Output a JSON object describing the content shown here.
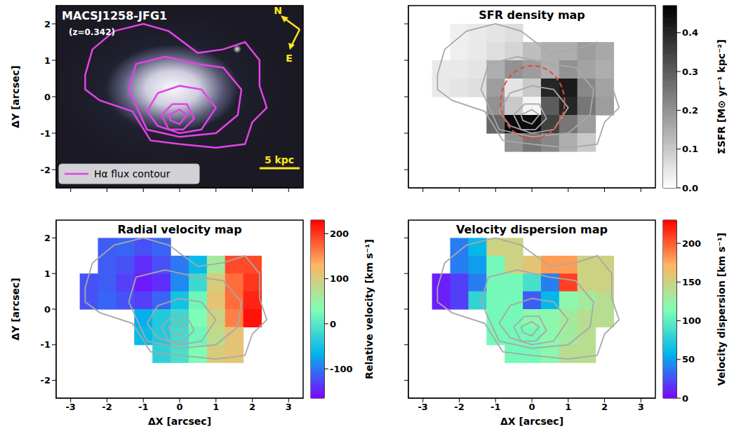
{
  "halpha_contours": {
    "name": "Hα flux contour",
    "levels": [
      {
        "x": [
          -2.6,
          -2.4,
          -1.8,
          -1.0,
          -0.3,
          0.5,
          1.2,
          1.8,
          2.2,
          2.2,
          2.4,
          2.0,
          1.8,
          1.0,
          0.0,
          -0.8,
          -1.3,
          -2.2,
          -2.6,
          -2.6
        ],
        "y": [
          0.6,
          1.3,
          1.8,
          2.0,
          1.8,
          1.2,
          1.3,
          1.5,
          1.0,
          0.3,
          -0.3,
          -0.7,
          -1.3,
          -1.4,
          -1.3,
          -1.2,
          -0.4,
          -0.1,
          0.2,
          0.6
        ]
      },
      {
        "x": [
          -1.4,
          -1.2,
          -0.4,
          0.5,
          1.2,
          1.7,
          1.6,
          1.0,
          0.0,
          -0.9,
          -1.4
        ],
        "y": [
          0.2,
          0.9,
          1.1,
          0.9,
          0.8,
          0.2,
          -0.5,
          -1.0,
          -1.1,
          -0.9,
          0.2
        ]
      },
      {
        "x": [
          -0.9,
          -0.6,
          0.0,
          0.6,
          1.0,
          0.6,
          0.0,
          -0.6,
          -0.9
        ],
        "y": [
          -0.4,
          0.1,
          0.3,
          0.2,
          -0.3,
          -0.9,
          -1.0,
          -0.8,
          -0.4
        ]
      },
      {
        "x": [
          -0.5,
          -0.2,
          0.2,
          0.4,
          0.1,
          -0.3,
          -0.5
        ],
        "y": [
          -0.5,
          -0.2,
          -0.2,
          -0.6,
          -0.9,
          -0.9,
          -0.5
        ]
      },
      {
        "x": [
          -0.3,
          0.0,
          0.2,
          0.0,
          -0.25,
          -0.3
        ],
        "y": [
          -0.5,
          -0.35,
          -0.5,
          -0.75,
          -0.65,
          -0.5
        ]
      }
    ]
  },
  "chart_data": [
    {
      "type": "image",
      "annotations": [
        "MACSJ1258-JFG1",
        "(z=0.342)"
      ],
      "compass": [
        "N",
        "E"
      ],
      "scale_bar": "5 kpc",
      "legend": "lower left",
      "contour_color": "#e442e8",
      "ylabel": "ΔY [arcsec]",
      "xlim": [
        -3.4,
        3.4
      ],
      "ylim": [
        -2.5,
        2.5
      ],
      "xticks": [
        -3,
        -2,
        -1,
        0,
        1,
        2,
        3
      ],
      "yticks": [
        -2,
        -1,
        0,
        1,
        2
      ],
      "tick_labels": "y"
    },
    {
      "type": "heatmap",
      "title": "SFR density map",
      "contour_color": "#a8a8a8",
      "xlim": [
        -3.4,
        3.4
      ],
      "ylim": [
        -2.5,
        2.5
      ],
      "xticks": [
        -3,
        -2,
        -1,
        0,
        1,
        2,
        3
      ],
      "yticks": [
        -2,
        -1,
        0,
        1,
        2
      ],
      "tick_labels": false,
      "x": [
        -2.5,
        -2.0,
        -1.5,
        -1.0,
        -0.5,
        0.0,
        0.5,
        1.0,
        1.5,
        2.0
      ],
      "y": [
        1.75,
        1.25,
        0.75,
        0.25,
        -0.25,
        -0.75,
        -1.25
      ],
      "cells": [
        [
          null,
          0.03,
          0.04,
          0.05,
          0.06,
          null,
          null,
          null,
          null,
          null
        ],
        [
          null,
          0.03,
          0.04,
          0.06,
          0.08,
          0.12,
          0.15,
          0.15,
          0.18,
          0.16
        ],
        [
          0.04,
          0.04,
          0.05,
          0.15,
          0.2,
          0.18,
          0.15,
          0.2,
          0.17,
          0.15
        ],
        [
          0.04,
          0.05,
          0.06,
          0.18,
          0.05,
          0.1,
          0.4,
          0.42,
          0.22,
          0.17
        ],
        [
          null,
          null,
          null,
          0.2,
          0.1,
          0.02,
          0.3,
          0.4,
          0.25,
          0.18
        ],
        [
          null,
          null,
          null,
          0.28,
          0.45,
          0.45,
          0.35,
          0.25,
          0.18,
          null
        ],
        [
          null,
          null,
          null,
          null,
          0.2,
          0.25,
          0.22,
          0.15,
          0.1,
          null
        ]
      ],
      "ellipse": {
        "center": [
          0.02,
          -0.15
        ],
        "semi_axes": [
          0.88,
          1.0
        ],
        "color": "#e8463c",
        "line_style": "dashed"
      },
      "colorbar": {
        "label": "ΣSFR [M⊙ yr⁻¹ kpc⁻²]",
        "range": [
          0,
          0.47
        ],
        "ticks": [
          {
            "value": 0,
            "label": "0.0"
          },
          0.1,
          0.2,
          0.3,
          0.4
        ],
        "colors": [
          "#ffffff",
          "#000000"
        ]
      }
    },
    {
      "type": "heatmap",
      "title": "Radial velocity map",
      "contour_color": "#a8a8a8",
      "xlabel": "ΔX [arcsec]",
      "ylabel": "ΔY [arcsec]",
      "xlim": [
        -3.4,
        3.4
      ],
      "ylim": [
        -2.5,
        2.5
      ],
      "xticks": [
        -3,
        -2,
        -1,
        0,
        1,
        2,
        3
      ],
      "yticks": [
        -2,
        -1,
        0,
        1,
        2
      ],
      "tick_labels": true,
      "x": [
        -2.5,
        -2.0,
        -1.5,
        -1.0,
        -0.5,
        0.0,
        0.5,
        1.0,
        1.5,
        2.0
      ],
      "y": [
        1.75,
        1.25,
        0.75,
        0.25,
        -0.25,
        -0.75,
        -1.25
      ],
      "cells": [
        [
          null,
          -115,
          -110,
          -120,
          -110,
          null,
          null,
          null,
          null,
          null
        ],
        [
          null,
          -115,
          -120,
          -140,
          -120,
          -100,
          -60,
          60,
          190,
          190
        ],
        [
          -120,
          -115,
          -130,
          -150,
          -140,
          -90,
          -20,
          100,
          170,
          200
        ],
        [
          -120,
          -110,
          -120,
          -130,
          -110,
          -50,
          20,
          110,
          170,
          210
        ],
        [
          null,
          null,
          null,
          -70,
          -40,
          -20,
          30,
          90,
          160,
          220
        ],
        [
          null,
          null,
          null,
          -60,
          -40,
          -15,
          20,
          80,
          110,
          null
        ],
        [
          null,
          null,
          null,
          null,
          -30,
          -10,
          30,
          100,
          110,
          null
        ]
      ],
      "colorbar": {
        "label": "Relative velocity [km s⁻¹]",
        "range": [
          -165,
          230
        ],
        "ticks": [
          -100,
          0,
          100,
          200
        ],
        "colors": [
          "#8000ff",
          "#00b5eb",
          "#80ffb4",
          "#ffb462",
          "#ff0000"
        ]
      }
    },
    {
      "type": "heatmap",
      "title": "Velocity dispersion map",
      "contour_color": "#a8a8a8",
      "xlabel": "ΔX [arcsec]",
      "xlim": [
        -3.4,
        3.4
      ],
      "ylim": [
        -2.5,
        2.5
      ],
      "xticks": [
        -3,
        -2,
        -1,
        0,
        1,
        2,
        3
      ],
      "yticks": [
        -2,
        -1,
        0,
        1,
        2
      ],
      "tick_labels": "x",
      "x": [
        -2.5,
        -2.0,
        -1.5,
        -1.0,
        -0.5,
        0.0,
        0.5,
        1.0,
        1.5,
        2.0
      ],
      "y": [
        1.75,
        1.25,
        0.75,
        0.25,
        -0.25,
        -0.75,
        -1.25
      ],
      "cells": [
        [
          null,
          40,
          60,
          150,
          150,
          null,
          null,
          null,
          null,
          null
        ],
        [
          null,
          40,
          50,
          110,
          150,
          160,
          180,
          180,
          150,
          150
        ],
        [
          10,
          20,
          40,
          110,
          110,
          90,
          40,
          210,
          150,
          150
        ],
        [
          10,
          20,
          80,
          110,
          110,
          30,
          60,
          120,
          130,
          140
        ],
        [
          null,
          null,
          null,
          110,
          110,
          120,
          120,
          130,
          140,
          140
        ],
        [
          null,
          null,
          null,
          110,
          110,
          110,
          120,
          130,
          140,
          null
        ],
        [
          null,
          null,
          null,
          null,
          110,
          110,
          120,
          140,
          140,
          null
        ]
      ],
      "colorbar": {
        "label": "Velocity dispersion [km s⁻¹]",
        "range": [
          0,
          230
        ],
        "ticks": [
          0,
          50,
          100,
          150,
          200
        ],
        "colors": [
          "#8000ff",
          "#00b5eb",
          "#80ffb4",
          "#ffb462",
          "#ff0000"
        ]
      }
    }
  ]
}
